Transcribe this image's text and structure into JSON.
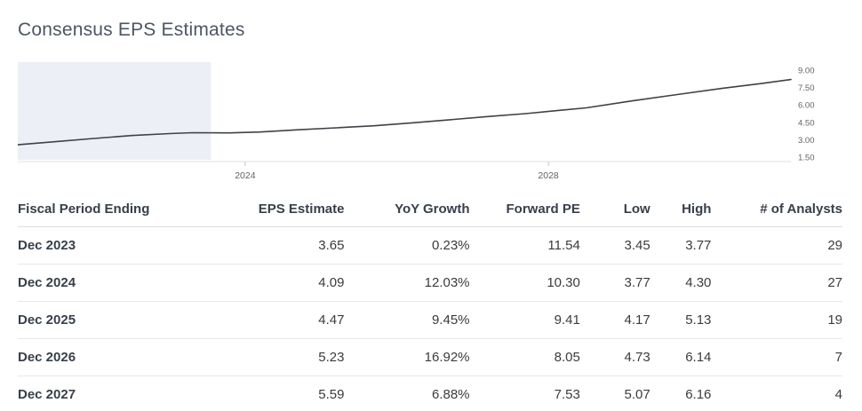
{
  "page": {
    "title": "Consensus EPS Estimates"
  },
  "chart_data": {
    "type": "line",
    "title": "Consensus EPS Estimates",
    "xlabel": "",
    "ylabel": "",
    "xlim": [
      2021,
      2031.2
    ],
    "ylim": [
      1.1,
      9.4
    ],
    "grid": false,
    "legend": "none",
    "x_ticks": [
      {
        "value": 2024,
        "label": "2024"
      },
      {
        "value": 2028,
        "label": "2028"
      }
    ],
    "y_ticks": [
      {
        "value": 9.0,
        "label": "9.00"
      },
      {
        "value": 7.5,
        "label": "7.50"
      },
      {
        "value": 6.0,
        "label": "6.00"
      },
      {
        "value": 4.5,
        "label": "4.50"
      },
      {
        "value": 3.0,
        "label": "3.00"
      },
      {
        "value": 1.5,
        "label": "1.50"
      }
    ],
    "highlight_region": {
      "x_start": 2021,
      "x_end": 2023.55,
      "color": "#edeff6"
    },
    "line_color": "#3e4146",
    "axis_color": "#e0e0e0",
    "tick_color": "#c4c4c4",
    "tick_label_color": "#5f6368",
    "series": [
      {
        "name": "EPS Estimate",
        "points": [
          [
            2021.0,
            2.55
          ],
          [
            2021.5,
            2.82
          ],
          [
            2022.0,
            3.1
          ],
          [
            2022.5,
            3.35
          ],
          [
            2023.0,
            3.52
          ],
          [
            2023.3,
            3.6
          ],
          [
            2023.8,
            3.58
          ],
          [
            2024.2,
            3.66
          ],
          [
            2024.7,
            3.85
          ],
          [
            2025.2,
            4.02
          ],
          [
            2025.7,
            4.2
          ],
          [
            2026.2,
            4.45
          ],
          [
            2026.7,
            4.72
          ],
          [
            2027.2,
            5.0
          ],
          [
            2027.7,
            5.25
          ],
          [
            2028.1,
            5.5
          ],
          [
            2028.5,
            5.75
          ],
          [
            2029.1,
            6.35
          ],
          [
            2029.7,
            6.9
          ],
          [
            2030.3,
            7.45
          ],
          [
            2030.8,
            7.85
          ],
          [
            2031.2,
            8.2
          ]
        ]
      }
    ]
  },
  "table": {
    "columns": [
      {
        "label": "Fiscal Period Ending",
        "align": "left"
      },
      {
        "label": "EPS Estimate",
        "align": "right"
      },
      {
        "label": "YoY Growth",
        "align": "right"
      },
      {
        "label": "Forward PE",
        "align": "right"
      },
      {
        "label": "Low",
        "align": "right"
      },
      {
        "label": "High",
        "align": "right"
      },
      {
        "label": "# of Analysts",
        "align": "right"
      }
    ],
    "rows": [
      [
        "Dec 2023",
        "3.65",
        "0.23%",
        "11.54",
        "3.45",
        "3.77",
        "29"
      ],
      [
        "Dec 2024",
        "4.09",
        "12.03%",
        "10.30",
        "3.77",
        "4.30",
        "27"
      ],
      [
        "Dec 2025",
        "4.47",
        "9.45%",
        "9.41",
        "4.17",
        "5.13",
        "19"
      ],
      [
        "Dec 2026",
        "5.23",
        "16.92%",
        "8.05",
        "4.73",
        "6.14",
        "7"
      ],
      [
        "Dec 2027",
        "5.59",
        "6.88%",
        "7.53",
        "5.07",
        "6.16",
        "4"
      ]
    ]
  }
}
